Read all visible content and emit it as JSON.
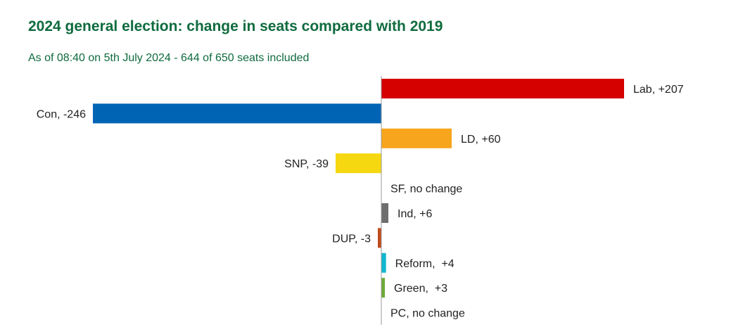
{
  "title": "2024 general election: change in seats compared with 2019",
  "subtitle": "As of 08:40 on 5th July 2024 - 644 of 650 seats included",
  "chart_data": {
    "type": "bar",
    "orientation": "horizontal",
    "title": "2024 general election: change in seats compared with 2019",
    "subtitle": "As of 08:40 on 5th July 2024 - 644 of 650 seats included",
    "categories": [
      "Lab",
      "Con",
      "LD",
      "SNP",
      "SF",
      "Ind",
      "DUP",
      "Reform",
      "Green",
      "PC"
    ],
    "values": [
      207,
      -246,
      60,
      -39,
      0,
      6,
      -3,
      4,
      3,
      0
    ],
    "labels": [
      "Lab, +207",
      "Con, -246",
      "LD, +60",
      "SNP, -39",
      "SF, no change",
      "Ind, +6",
      "DUP, -3",
      "Reform,  +4",
      "Green,  +3",
      "PC, no change"
    ],
    "colors": [
      "#d50000",
      "#0064b4",
      "#f7a51c",
      "#f5d810",
      "#ffffff",
      "#6e6e6e",
      "#c04a1a",
      "#12b6cf",
      "#6cab35",
      "#ffffff"
    ],
    "grid": false,
    "legend": "none",
    "xlabel": "",
    "ylabel": ""
  }
}
